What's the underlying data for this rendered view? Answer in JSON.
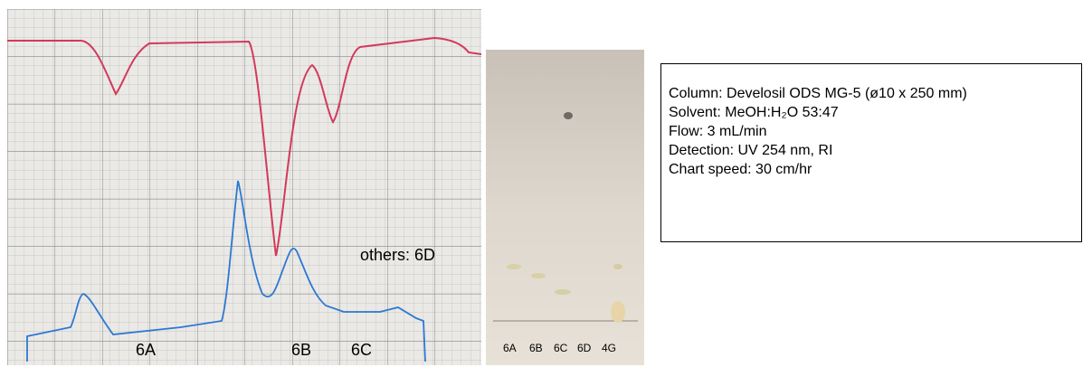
{
  "chromatogram": {
    "peak_labels": [
      "6A",
      "6B",
      "6C"
    ],
    "others_label": "others: 6D"
  },
  "tlc_plate": {
    "lane_labels": [
      "6A",
      "6B",
      "6C",
      "6D",
      "4G"
    ]
  },
  "conditions": [
    "Column: Develosil ODS MG-5 (ø10 x 250 mm)",
    "Solvent: MeOH:H₂O 53:47",
    "Flow: 3 mL/min",
    "Detection: UV 254 nm, RI",
    "Chart speed: 30 cm/hr"
  ]
}
